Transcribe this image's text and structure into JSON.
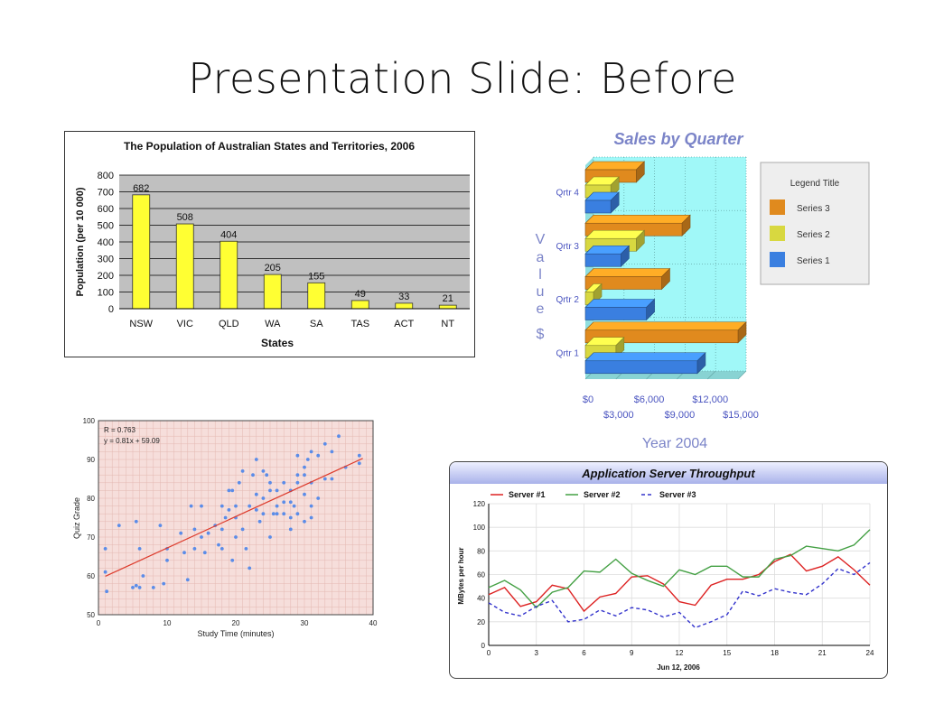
{
  "slide": {
    "title": "Presentation Slide: Before"
  },
  "chart_data": [
    {
      "type": "bar",
      "title": "The Population of Australian States and Territories, 2006",
      "xlabel": "States",
      "ylabel": "Population (per 10 000)",
      "categories": [
        "NSW",
        "VIC",
        "QLD",
        "WA",
        "SA",
        "TAS",
        "ACT",
        "NT"
      ],
      "values": [
        682,
        508,
        404,
        205,
        155,
        49,
        33,
        21
      ],
      "ylim": [
        0,
        800
      ],
      "yticks": [
        0,
        100,
        200,
        300,
        400,
        500,
        600,
        700,
        800
      ],
      "grid": true,
      "colors": {
        "bar": "#ffff33",
        "plot_bg": "#c0c0c0"
      }
    },
    {
      "type": "bar",
      "orientation": "horizontal",
      "style": "3d",
      "title": "Sales by Quarter",
      "xlabel": "Year 2004",
      "ylabel": "Value $",
      "categories": [
        "Qrtr 1",
        "Qrtr 2",
        "Qrtr 3",
        "Qrtr 4"
      ],
      "series": [
        {
          "name": "Series 3",
          "color": "#e08a1e",
          "values": [
            15000,
            7500,
            9500,
            5000
          ]
        },
        {
          "name": "Series 2",
          "color": "#d8d840",
          "values": [
            3000,
            800,
            5000,
            2500
          ]
        },
        {
          "name": "Series 1",
          "color": "#3a7fe0",
          "values": [
            11000,
            6000,
            3500,
            2500
          ]
        }
      ],
      "xticks": [
        "$0",
        "$3,000",
        "$6,000",
        "$9,000",
        "$12,000",
        "$15,000"
      ],
      "xlim": [
        0,
        15000
      ],
      "legend": {
        "title": "Legend Title",
        "position": "right"
      },
      "colors": {
        "plot_bg": "#a0f8f8"
      }
    },
    {
      "type": "scatter",
      "xlabel": "Study Time (minutes)",
      "ylabel": "Quiz Grade",
      "annotations": [
        "R = 0.763",
        "y = 0.81x + 59.09"
      ],
      "xlim": [
        0,
        40
      ],
      "ylim": [
        50,
        100
      ],
      "xticks": [
        0,
        10,
        20,
        30,
        40
      ],
      "yticks": [
        50,
        60,
        70,
        80,
        90,
        100
      ],
      "trendline": {
        "slope": 0.81,
        "intercept": 59.09
      },
      "points": [
        [
          1,
          61
        ],
        [
          1,
          67
        ],
        [
          1.2,
          56
        ],
        [
          3,
          73
        ],
        [
          5,
          57
        ],
        [
          5.5,
          57.5
        ],
        [
          5.5,
          74
        ],
        [
          6,
          67
        ],
        [
          6,
          57
        ],
        [
          6.5,
          60
        ],
        [
          8,
          57
        ],
        [
          9,
          73
        ],
        [
          9.5,
          58
        ],
        [
          10,
          64
        ],
        [
          10,
          67
        ],
        [
          12,
          71
        ],
        [
          12.5,
          66
        ],
        [
          13,
          59
        ],
        [
          13.5,
          78
        ],
        [
          14,
          72
        ],
        [
          14,
          67
        ],
        [
          15,
          78
        ],
        [
          15,
          70
        ],
        [
          15.5,
          66
        ],
        [
          16,
          71
        ],
        [
          17,
          73
        ],
        [
          17.5,
          68
        ],
        [
          18,
          72
        ],
        [
          18,
          67
        ],
        [
          18,
          78
        ],
        [
          18.5,
          75
        ],
        [
          19,
          82
        ],
        [
          19,
          77
        ],
        [
          19.5,
          64
        ],
        [
          19.5,
          82
        ],
        [
          20,
          78
        ],
        [
          20,
          70
        ],
        [
          20,
          75
        ],
        [
          20.5,
          84
        ],
        [
          21,
          87
        ],
        [
          21,
          72
        ],
        [
          21.5,
          67
        ],
        [
          22,
          62
        ],
        [
          22.5,
          86
        ],
        [
          22,
          78
        ],
        [
          23,
          90
        ],
        [
          23,
          81
        ],
        [
          23,
          77
        ],
        [
          23.5,
          74
        ],
        [
          24,
          80
        ],
        [
          24,
          76
        ],
        [
          24.5,
          86
        ],
        [
          24,
          87
        ],
        [
          25,
          84
        ],
        [
          25,
          82
        ],
        [
          25,
          70
        ],
        [
          25.5,
          76
        ],
        [
          26,
          76
        ],
        [
          26,
          82
        ],
        [
          26,
          78
        ],
        [
          27,
          84
        ],
        [
          27,
          79
        ],
        [
          27,
          76
        ],
        [
          28,
          75
        ],
        [
          28,
          79
        ],
        [
          28,
          82
        ],
        [
          28.5,
          78
        ],
        [
          28,
          72
        ],
        [
          29,
          86
        ],
        [
          29,
          84
        ],
        [
          29,
          91
        ],
        [
          29,
          76
        ],
        [
          30,
          81
        ],
        [
          30,
          86
        ],
        [
          30,
          88
        ],
        [
          30,
          74
        ],
        [
          30.5,
          90
        ],
        [
          31,
          92
        ],
        [
          31,
          78
        ],
        [
          31,
          84
        ],
        [
          31,
          75
        ],
        [
          32,
          80
        ],
        [
          32,
          91
        ],
        [
          33,
          94
        ],
        [
          33,
          85
        ],
        [
          34,
          92
        ],
        [
          34,
          85
        ],
        [
          35,
          96
        ],
        [
          36,
          88
        ],
        [
          38,
          91
        ],
        [
          38,
          89
        ]
      ],
      "colors": {
        "plot_bg": "#f6dedb",
        "points": "#5b8ce8",
        "trendline": "#dd3b2c"
      }
    },
    {
      "type": "line",
      "title": "Application Server Throughput",
      "xlabel": "Jun 12, 2006",
      "ylabel": "MBytes per hour",
      "xlim": [
        0,
        24
      ],
      "ylim": [
        0,
        120
      ],
      "xticks": [
        0,
        3,
        6,
        9,
        12,
        15,
        18,
        21,
        24
      ],
      "yticks": [
        0,
        20,
        40,
        60,
        80,
        100,
        120
      ],
      "legend": {
        "position": "top"
      },
      "x": [
        0,
        1,
        2,
        3,
        4,
        5,
        6,
        7,
        8,
        9,
        10,
        11,
        12,
        13,
        14,
        15,
        16,
        17,
        18,
        19,
        20,
        21,
        22,
        23,
        24
      ],
      "series": [
        {
          "name": "Server #1",
          "color": "#dd2222",
          "dash": false,
          "values": [
            43,
            49,
            33,
            37,
            51,
            48,
            29,
            41,
            44,
            58,
            59,
            52,
            37,
            34,
            51,
            56,
            56,
            60,
            71,
            77,
            63,
            67,
            75,
            64,
            51
          ]
        },
        {
          "name": "Server #2",
          "color": "#44a044",
          "dash": false,
          "values": [
            49,
            55,
            47,
            32,
            45,
            49,
            63,
            62,
            73,
            61,
            55,
            50,
            64,
            60,
            67,
            67,
            58,
            58,
            73,
            76,
            84,
            82,
            80,
            85,
            98
          ]
        },
        {
          "name": "Server #3",
          "color": "#3333cc",
          "dash": true,
          "values": [
            36,
            28,
            25,
            33,
            38,
            20,
            22,
            30,
            25,
            32,
            30,
            24,
            28,
            15,
            20,
            26,
            46,
            42,
            48,
            45,
            43,
            52,
            65,
            60,
            70
          ]
        }
      ]
    }
  ]
}
